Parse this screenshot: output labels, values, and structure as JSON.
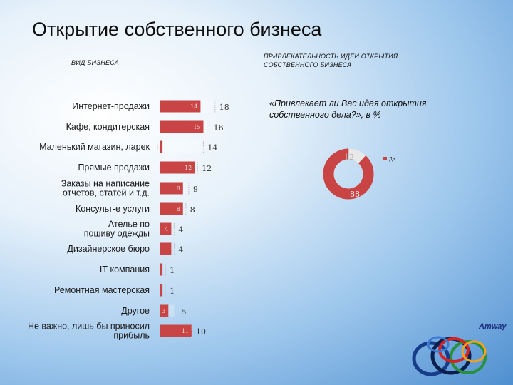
{
  "title": "Открытие собственного бизнеса",
  "left_header": "ВИД БИЗНЕСА",
  "right_header": "ПРИВЛЕКАТЕЛЬНОСТЬ ИДЕИ ОТКРЫТИЯ СОБСТВЕННОГО БИЗНЕСА",
  "question": "«Привлекает ли Вас идея открытия собственного дела?», в %",
  "brand": "Amway",
  "colors": {
    "bar": "#c94545",
    "pie_main": "#c94545",
    "pie_rest": "#e8e8e8"
  },
  "chart_data": [
    {
      "type": "bar",
      "orientation": "horizontal",
      "categories": [
        [
          "Интернет-продажи"
        ],
        [
          "Кафе, кондитерская"
        ],
        [
          "Маленький магазин, ларек"
        ],
        [
          "Прямые продажи"
        ],
        [
          "Заказы на написание",
          "отчетов, статей и т.д."
        ],
        [
          "Консульт-е услуги"
        ],
        [
          "Ателье по",
          "пошиву одежды"
        ],
        [
          "Дизайнерское бюро"
        ],
        [
          "IT-компания"
        ],
        [
          "Ремонтная мастерская"
        ],
        [
          "Другое"
        ],
        [
          "Не важно, лишь бы приносил",
          "прибыль"
        ]
      ],
      "series": [
        {
          "values": [
            14,
            15,
            1,
            12,
            8,
            8,
            4,
            null,
            null,
            null,
            3,
            11
          ]
        },
        {
          "values": [
            18,
            16,
            14,
            12,
            9,
            8,
            4,
            4,
            1,
            1,
            5,
            10
          ]
        }
      ]
    },
    {
      "type": "pie",
      "labels": [
        "Да",
        ""
      ],
      "values": [
        88,
        12
      ]
    }
  ]
}
